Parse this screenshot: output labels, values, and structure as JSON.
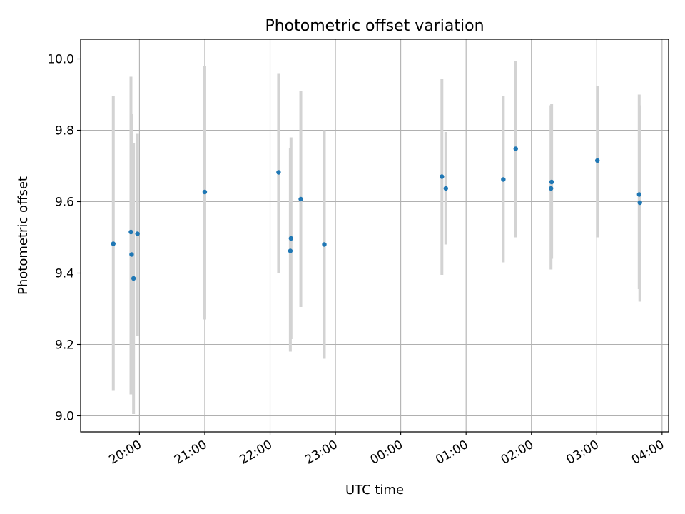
{
  "chart_data": {
    "type": "scatter",
    "title": "Photometric offset variation",
    "xlabel": "UTC time",
    "ylabel": "Photometric offset",
    "x_unit": "hours after 00:00 UTC of the first night",
    "xlim": [
      19.1,
      28.1
    ],
    "ylim": [
      8.955,
      10.055
    ],
    "grid": true,
    "xticks": [
      {
        "value": 20,
        "label": "20:00"
      },
      {
        "value": 21,
        "label": "21:00"
      },
      {
        "value": 22,
        "label": "22:00"
      },
      {
        "value": 23,
        "label": "23:00"
      },
      {
        "value": 24,
        "label": "00:00"
      },
      {
        "value": 25,
        "label": "01:00"
      },
      {
        "value": 26,
        "label": "02:00"
      },
      {
        "value": 27,
        "label": "03:00"
      },
      {
        "value": 28,
        "label": "04:00"
      }
    ],
    "yticks": [
      {
        "value": 9.0,
        "label": "9.0"
      },
      {
        "value": 9.2,
        "label": "9.2"
      },
      {
        "value": 9.4,
        "label": "9.4"
      },
      {
        "value": 9.6,
        "label": "9.6"
      },
      {
        "value": 9.8,
        "label": "9.8"
      },
      {
        "value": 10.0,
        "label": "10.0"
      }
    ],
    "series": [
      {
        "name": "offset",
        "color": "#1f77b4",
        "errorbar_color": "#d3d3d3",
        "points": [
          {
            "x": 19.6,
            "y": 9.482,
            "low": 9.07,
            "high": 9.895
          },
          {
            "x": 19.87,
            "y": 9.515,
            "low": 9.06,
            "high": 9.95
          },
          {
            "x": 19.88,
            "y": 9.452,
            "low": 9.06,
            "high": 9.845
          },
          {
            "x": 19.91,
            "y": 9.385,
            "low": 9.005,
            "high": 9.765
          },
          {
            "x": 19.97,
            "y": 9.51,
            "low": 9.225,
            "high": 9.79
          },
          {
            "x": 21.0,
            "y": 9.627,
            "low": 9.27,
            "high": 9.98
          },
          {
            "x": 22.13,
            "y": 9.682,
            "low": 9.4,
            "high": 9.96
          },
          {
            "x": 22.31,
            "y": 9.462,
            "low": 9.18,
            "high": 9.75
          },
          {
            "x": 22.32,
            "y": 9.497,
            "low": 9.215,
            "high": 9.78
          },
          {
            "x": 22.47,
            "y": 9.607,
            "low": 9.305,
            "high": 9.91
          },
          {
            "x": 22.83,
            "y": 9.48,
            "low": 9.16,
            "high": 9.8
          },
          {
            "x": 24.63,
            "y": 9.67,
            "low": 9.395,
            "high": 9.945
          },
          {
            "x": 24.69,
            "y": 9.637,
            "low": 9.48,
            "high": 9.795
          },
          {
            "x": 25.57,
            "y": 9.662,
            "low": 9.43,
            "high": 9.895
          },
          {
            "x": 25.76,
            "y": 9.748,
            "low": 9.5,
            "high": 9.995
          },
          {
            "x": 26.3,
            "y": 9.637,
            "low": 9.41,
            "high": 9.87
          },
          {
            "x": 26.31,
            "y": 9.655,
            "low": 9.44,
            "high": 9.875
          },
          {
            "x": 27.01,
            "y": 9.715,
            "low": 9.5,
            "high": 9.925
          },
          {
            "x": 27.65,
            "y": 9.62,
            "low": 9.355,
            "high": 9.9
          },
          {
            "x": 27.66,
            "y": 9.597,
            "low": 9.32,
            "high": 9.87
          }
        ]
      }
    ]
  }
}
